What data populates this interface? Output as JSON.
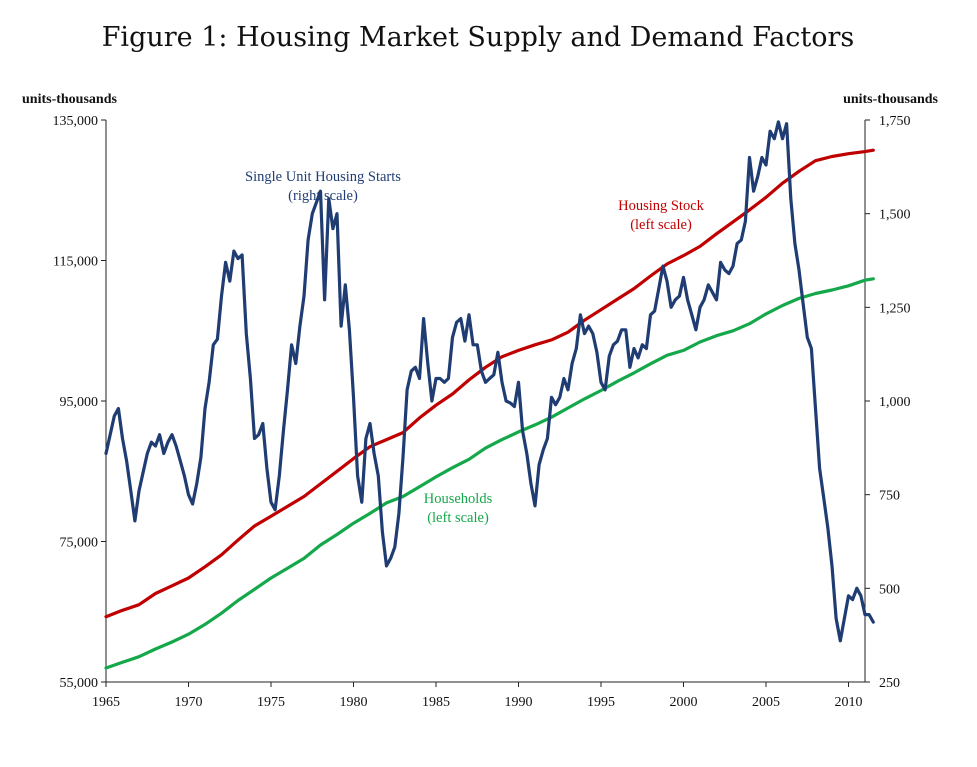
{
  "chart_data": {
    "type": "line",
    "title": "Figure 1: Housing Market Supply and Demand Factors",
    "left_axis": {
      "unit_label": "units-thousands",
      "range": [
        55000,
        135000
      ],
      "ticks": [
        55000,
        75000,
        95000,
        115000,
        135000
      ],
      "tick_labels": [
        "55,000",
        "75,000",
        "95,000",
        "115,000",
        "135,000"
      ]
    },
    "right_axis": {
      "unit_label": "units-thousands",
      "range": [
        250,
        1750
      ],
      "ticks": [
        250,
        500,
        750,
        1000,
        1250,
        1500,
        1750
      ],
      "tick_labels": [
        "250",
        "500",
        "750",
        "1,000",
        "1,250",
        "1,500",
        "1,750"
      ]
    },
    "x_axis": {
      "range": [
        1965,
        2011
      ],
      "ticks": [
        1965,
        1970,
        1975,
        1980,
        1985,
        1990,
        1995,
        2000,
        2005,
        2010
      ],
      "tick_labels": [
        "1965",
        "1970",
        "1975",
        "1980",
        "1985",
        "1990",
        "1995",
        "2000",
        "2005",
        "2010"
      ]
    },
    "grid": false,
    "series": [
      {
        "name": "Single Unit Housing Starts",
        "axis": "right",
        "color": "#1f3c73",
        "points": [
          [
            1965.0,
            860
          ],
          [
            1965.5,
            960
          ],
          [
            1965.75,
            980
          ],
          [
            1966.0,
            900
          ],
          [
            1966.25,
            840
          ],
          [
            1966.5,
            760
          ],
          [
            1966.75,
            680
          ],
          [
            1967.0,
            760
          ],
          [
            1967.5,
            860
          ],
          [
            1967.75,
            890
          ],
          [
            1968.0,
            880
          ],
          [
            1968.25,
            910
          ],
          [
            1968.5,
            860
          ],
          [
            1968.75,
            890
          ],
          [
            1969.0,
            910
          ],
          [
            1969.25,
            880
          ],
          [
            1969.5,
            840
          ],
          [
            1969.75,
            800
          ],
          [
            1970.0,
            750
          ],
          [
            1970.25,
            725
          ],
          [
            1970.5,
            780
          ],
          [
            1970.75,
            850
          ],
          [
            1971.0,
            980
          ],
          [
            1971.25,
            1050
          ],
          [
            1971.5,
            1150
          ],
          [
            1971.75,
            1165
          ],
          [
            1972.0,
            1280
          ],
          [
            1972.25,
            1370
          ],
          [
            1972.5,
            1320
          ],
          [
            1972.75,
            1400
          ],
          [
            1973.0,
            1380
          ],
          [
            1973.25,
            1390
          ],
          [
            1973.5,
            1180
          ],
          [
            1973.75,
            1060
          ],
          [
            1974.0,
            900
          ],
          [
            1974.25,
            910
          ],
          [
            1974.5,
            940
          ],
          [
            1974.75,
            820
          ],
          [
            1975.0,
            730
          ],
          [
            1975.25,
            710
          ],
          [
            1975.5,
            800
          ],
          [
            1975.75,
            920
          ],
          [
            1976.0,
            1030
          ],
          [
            1976.25,
            1150
          ],
          [
            1976.5,
            1100
          ],
          [
            1976.75,
            1200
          ],
          [
            1977.0,
            1280
          ],
          [
            1977.25,
            1430
          ],
          [
            1977.5,
            1500
          ],
          [
            1977.75,
            1530
          ],
          [
            1978.0,
            1560
          ],
          [
            1978.25,
            1270
          ],
          [
            1978.5,
            1540
          ],
          [
            1978.75,
            1460
          ],
          [
            1979.0,
            1500
          ],
          [
            1979.25,
            1200
          ],
          [
            1979.5,
            1310
          ],
          [
            1979.75,
            1190
          ],
          [
            1980.0,
            1010
          ],
          [
            1980.25,
            800
          ],
          [
            1980.5,
            730
          ],
          [
            1980.75,
            900
          ],
          [
            1981.0,
            940
          ],
          [
            1981.25,
            860
          ],
          [
            1981.5,
            800
          ],
          [
            1981.75,
            650
          ],
          [
            1982.0,
            560
          ],
          [
            1982.25,
            580
          ],
          [
            1982.5,
            610
          ],
          [
            1982.75,
            700
          ],
          [
            1983.0,
            850
          ],
          [
            1983.25,
            1030
          ],
          [
            1983.5,
            1080
          ],
          [
            1983.75,
            1090
          ],
          [
            1984.0,
            1060
          ],
          [
            1984.25,
            1220
          ],
          [
            1984.5,
            1100
          ],
          [
            1984.75,
            1000
          ],
          [
            1985.0,
            1060
          ],
          [
            1985.25,
            1060
          ],
          [
            1985.5,
            1050
          ],
          [
            1985.75,
            1060
          ],
          [
            1986.0,
            1170
          ],
          [
            1986.25,
            1210
          ],
          [
            1986.5,
            1220
          ],
          [
            1986.75,
            1160
          ],
          [
            1987.0,
            1230
          ],
          [
            1987.25,
            1150
          ],
          [
            1987.5,
            1150
          ],
          [
            1987.75,
            1080
          ],
          [
            1988.0,
            1050
          ],
          [
            1988.25,
            1060
          ],
          [
            1988.5,
            1070
          ],
          [
            1988.75,
            1130
          ],
          [
            1989.0,
            1050
          ],
          [
            1989.25,
            1000
          ],
          [
            1989.5,
            995
          ],
          [
            1989.75,
            985
          ],
          [
            1990.0,
            1050
          ],
          [
            1990.25,
            920
          ],
          [
            1990.5,
            860
          ],
          [
            1990.75,
            780
          ],
          [
            1991.0,
            720
          ],
          [
            1991.25,
            830
          ],
          [
            1991.5,
            870
          ],
          [
            1991.75,
            900
          ],
          [
            1992.0,
            1010
          ],
          [
            1992.25,
            990
          ],
          [
            1992.5,
            1010
          ],
          [
            1992.75,
            1060
          ],
          [
            1993.0,
            1030
          ],
          [
            1993.25,
            1100
          ],
          [
            1993.5,
            1140
          ],
          [
            1993.75,
            1230
          ],
          [
            1994.0,
            1180
          ],
          [
            1994.25,
            1200
          ],
          [
            1994.5,
            1180
          ],
          [
            1994.75,
            1130
          ],
          [
            1995.0,
            1050
          ],
          [
            1995.25,
            1030
          ],
          [
            1995.5,
            1120
          ],
          [
            1995.75,
            1150
          ],
          [
            1996.0,
            1160
          ],
          [
            1996.25,
            1190
          ],
          [
            1996.5,
            1190
          ],
          [
            1996.75,
            1090
          ],
          [
            1997.0,
            1140
          ],
          [
            1997.25,
            1115
          ],
          [
            1997.5,
            1150
          ],
          [
            1997.75,
            1140
          ],
          [
            1998.0,
            1230
          ],
          [
            1998.25,
            1240
          ],
          [
            1998.5,
            1300
          ],
          [
            1998.75,
            1360
          ],
          [
            1999.0,
            1320
          ],
          [
            1999.25,
            1250
          ],
          [
            1999.5,
            1270
          ],
          [
            1999.75,
            1280
          ],
          [
            2000.0,
            1330
          ],
          [
            2000.25,
            1270
          ],
          [
            2000.5,
            1230
          ],
          [
            2000.75,
            1190
          ],
          [
            2001.0,
            1250
          ],
          [
            2001.25,
            1270
          ],
          [
            2001.5,
            1310
          ],
          [
            2001.75,
            1290
          ],
          [
            2002.0,
            1270
          ],
          [
            2002.25,
            1370
          ],
          [
            2002.5,
            1350
          ],
          [
            2002.75,
            1340
          ],
          [
            2003.0,
            1360
          ],
          [
            2003.25,
            1420
          ],
          [
            2003.5,
            1430
          ],
          [
            2003.75,
            1480
          ],
          [
            2004.0,
            1650
          ],
          [
            2004.25,
            1560
          ],
          [
            2004.5,
            1600
          ],
          [
            2004.75,
            1650
          ],
          [
            2005.0,
            1630
          ],
          [
            2005.25,
            1720
          ],
          [
            2005.5,
            1700
          ],
          [
            2005.75,
            1745
          ],
          [
            2006.0,
            1700
          ],
          [
            2006.25,
            1740
          ],
          [
            2006.5,
            1540
          ],
          [
            2006.75,
            1420
          ],
          [
            2007.0,
            1350
          ],
          [
            2007.25,
            1260
          ],
          [
            2007.5,
            1170
          ],
          [
            2007.75,
            1140
          ],
          [
            2008.0,
            980
          ],
          [
            2008.25,
            820
          ],
          [
            2008.5,
            740
          ],
          [
            2008.75,
            660
          ],
          [
            2009.0,
            560
          ],
          [
            2009.25,
            420
          ],
          [
            2009.5,
            360
          ],
          [
            2009.75,
            420
          ],
          [
            2010.0,
            480
          ],
          [
            2010.25,
            470
          ],
          [
            2010.5,
            500
          ],
          [
            2010.75,
            480
          ],
          [
            2011.0,
            430
          ],
          [
            2011.25,
            430
          ],
          [
            2011.5,
            410
          ]
        ]
      },
      {
        "name": "Housing Stock",
        "axis": "left",
        "color": "#c00000",
        "points": [
          [
            1965.0,
            64300
          ],
          [
            1966.0,
            65200
          ],
          [
            1967.0,
            66000
          ],
          [
            1968.0,
            67600
          ],
          [
            1969.0,
            68700
          ],
          [
            1970.0,
            69800
          ],
          [
            1971.0,
            71400
          ],
          [
            1972.0,
            73100
          ],
          [
            1973.0,
            75200
          ],
          [
            1974.0,
            77200
          ],
          [
            1975.0,
            78600
          ],
          [
            1976.0,
            80000
          ],
          [
            1977.0,
            81400
          ],
          [
            1978.0,
            83200
          ],
          [
            1979.0,
            85000
          ],
          [
            1980.0,
            86800
          ],
          [
            1981.0,
            88500
          ],
          [
            1982.0,
            89500
          ],
          [
            1983.0,
            90500
          ],
          [
            1984.0,
            92600
          ],
          [
            1985.0,
            94400
          ],
          [
            1986.0,
            96000
          ],
          [
            1987.0,
            98000
          ],
          [
            1988.0,
            99800
          ],
          [
            1989.0,
            101300
          ],
          [
            1990.0,
            102200
          ],
          [
            1991.0,
            103000
          ],
          [
            1992.0,
            103700
          ],
          [
            1993.0,
            104800
          ],
          [
            1994.0,
            106500
          ],
          [
            1995.0,
            108000
          ],
          [
            1996.0,
            109500
          ],
          [
            1997.0,
            111000
          ],
          [
            1998.0,
            112800
          ],
          [
            1999.0,
            114500
          ],
          [
            2000.0,
            115700
          ],
          [
            2001.0,
            117000
          ],
          [
            2002.0,
            118800
          ],
          [
            2003.0,
            120500
          ],
          [
            2004.0,
            122200
          ],
          [
            2005.0,
            124000
          ],
          [
            2006.0,
            126000
          ],
          [
            2007.0,
            127700
          ],
          [
            2008.0,
            129200
          ],
          [
            2009.0,
            129800
          ],
          [
            2010.0,
            130200
          ],
          [
            2011.0,
            130500
          ],
          [
            2011.5,
            130700
          ]
        ]
      },
      {
        "name": "Households",
        "axis": "left",
        "color": "#14a84a",
        "points": [
          [
            1965.0,
            57000
          ],
          [
            1966.0,
            57800
          ],
          [
            1967.0,
            58600
          ],
          [
            1968.0,
            59700
          ],
          [
            1969.0,
            60700
          ],
          [
            1970.0,
            61800
          ],
          [
            1971.0,
            63200
          ],
          [
            1972.0,
            64800
          ],
          [
            1973.0,
            66600
          ],
          [
            1974.0,
            68200
          ],
          [
            1975.0,
            69800
          ],
          [
            1976.0,
            71200
          ],
          [
            1977.0,
            72600
          ],
          [
            1978.0,
            74500
          ],
          [
            1979.0,
            76000
          ],
          [
            1980.0,
            77600
          ],
          [
            1981.0,
            79000
          ],
          [
            1982.0,
            80500
          ],
          [
            1983.0,
            81400
          ],
          [
            1984.0,
            82800
          ],
          [
            1985.0,
            84200
          ],
          [
            1986.0,
            85500
          ],
          [
            1987.0,
            86700
          ],
          [
            1988.0,
            88300
          ],
          [
            1989.0,
            89500
          ],
          [
            1990.0,
            90600
          ],
          [
            1991.0,
            91600
          ],
          [
            1992.0,
            92700
          ],
          [
            1993.0,
            94000
          ],
          [
            1994.0,
            95300
          ],
          [
            1995.0,
            96500
          ],
          [
            1996.0,
            97800
          ],
          [
            1997.0,
            99000
          ],
          [
            1998.0,
            100300
          ],
          [
            1999.0,
            101500
          ],
          [
            2000.0,
            102200
          ],
          [
            2001.0,
            103400
          ],
          [
            2002.0,
            104300
          ],
          [
            2003.0,
            105000
          ],
          [
            2004.0,
            106000
          ],
          [
            2005.0,
            107400
          ],
          [
            2006.0,
            108600
          ],
          [
            2007.0,
            109600
          ],
          [
            2008.0,
            110300
          ],
          [
            2009.0,
            110800
          ],
          [
            2010.0,
            111400
          ],
          [
            2011.0,
            112200
          ],
          [
            2011.5,
            112400
          ]
        ]
      }
    ],
    "annotations": [
      {
        "series": "Single Unit Housing Starts",
        "lines": [
          "Single Unit Housing Starts",
          "(right scale)"
        ],
        "color": "#1f3c73"
      },
      {
        "series": "Housing Stock",
        "lines": [
          "Housing Stock",
          "(left scale)"
        ],
        "color": "#c00000"
      },
      {
        "series": "Households",
        "lines": [
          "Households",
          "(left scale)"
        ],
        "color": "#14a84a"
      }
    ]
  }
}
